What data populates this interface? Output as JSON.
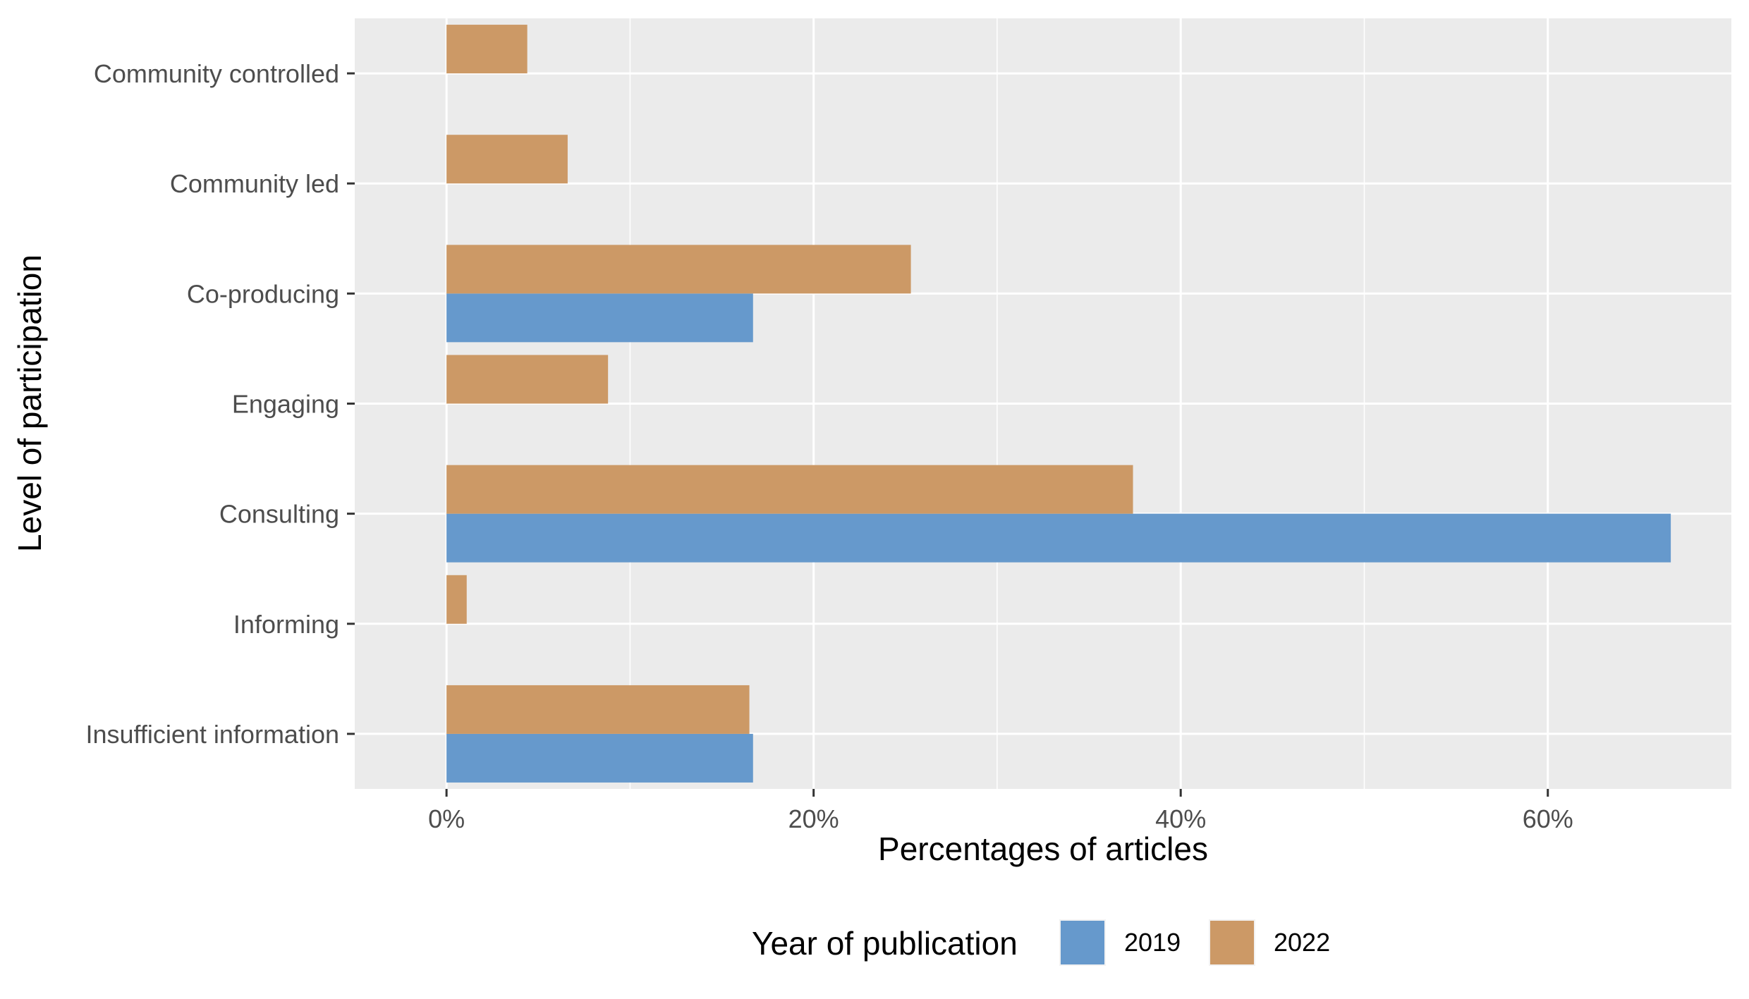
{
  "chart_data": {
    "type": "bar",
    "orientation": "horizontal",
    "title": "",
    "xlabel": "Percentages of articles",
    "ylabel": "Level of participation",
    "xlim": [
      -5,
      70
    ],
    "x_ticks": [
      0,
      20,
      40,
      60
    ],
    "x_tick_labels": [
      "0%",
      "20%",
      "40%",
      "60%"
    ],
    "x_tick_format": "percent",
    "grid": true,
    "categories": [
      "Community controlled",
      "Community led",
      "Co-producing",
      "Engaging",
      "Consulting",
      "Informing",
      "Insufficient information"
    ],
    "series": [
      {
        "name": "2019",
        "color": "#6699CC",
        "values": [
          0,
          0,
          16.7,
          0,
          66.7,
          0,
          16.7
        ]
      },
      {
        "name": "2022",
        "color": "#CC9966",
        "values": [
          4.4,
          6.6,
          25.3,
          8.8,
          37.4,
          1.1,
          16.5
        ]
      }
    ],
    "legend": {
      "title": "Year of publication",
      "placement": "bottom",
      "entries": [
        "2019",
        "2022"
      ]
    },
    "panel_background": "#EBEBEB",
    "grid_color": "#FFFFFF"
  }
}
